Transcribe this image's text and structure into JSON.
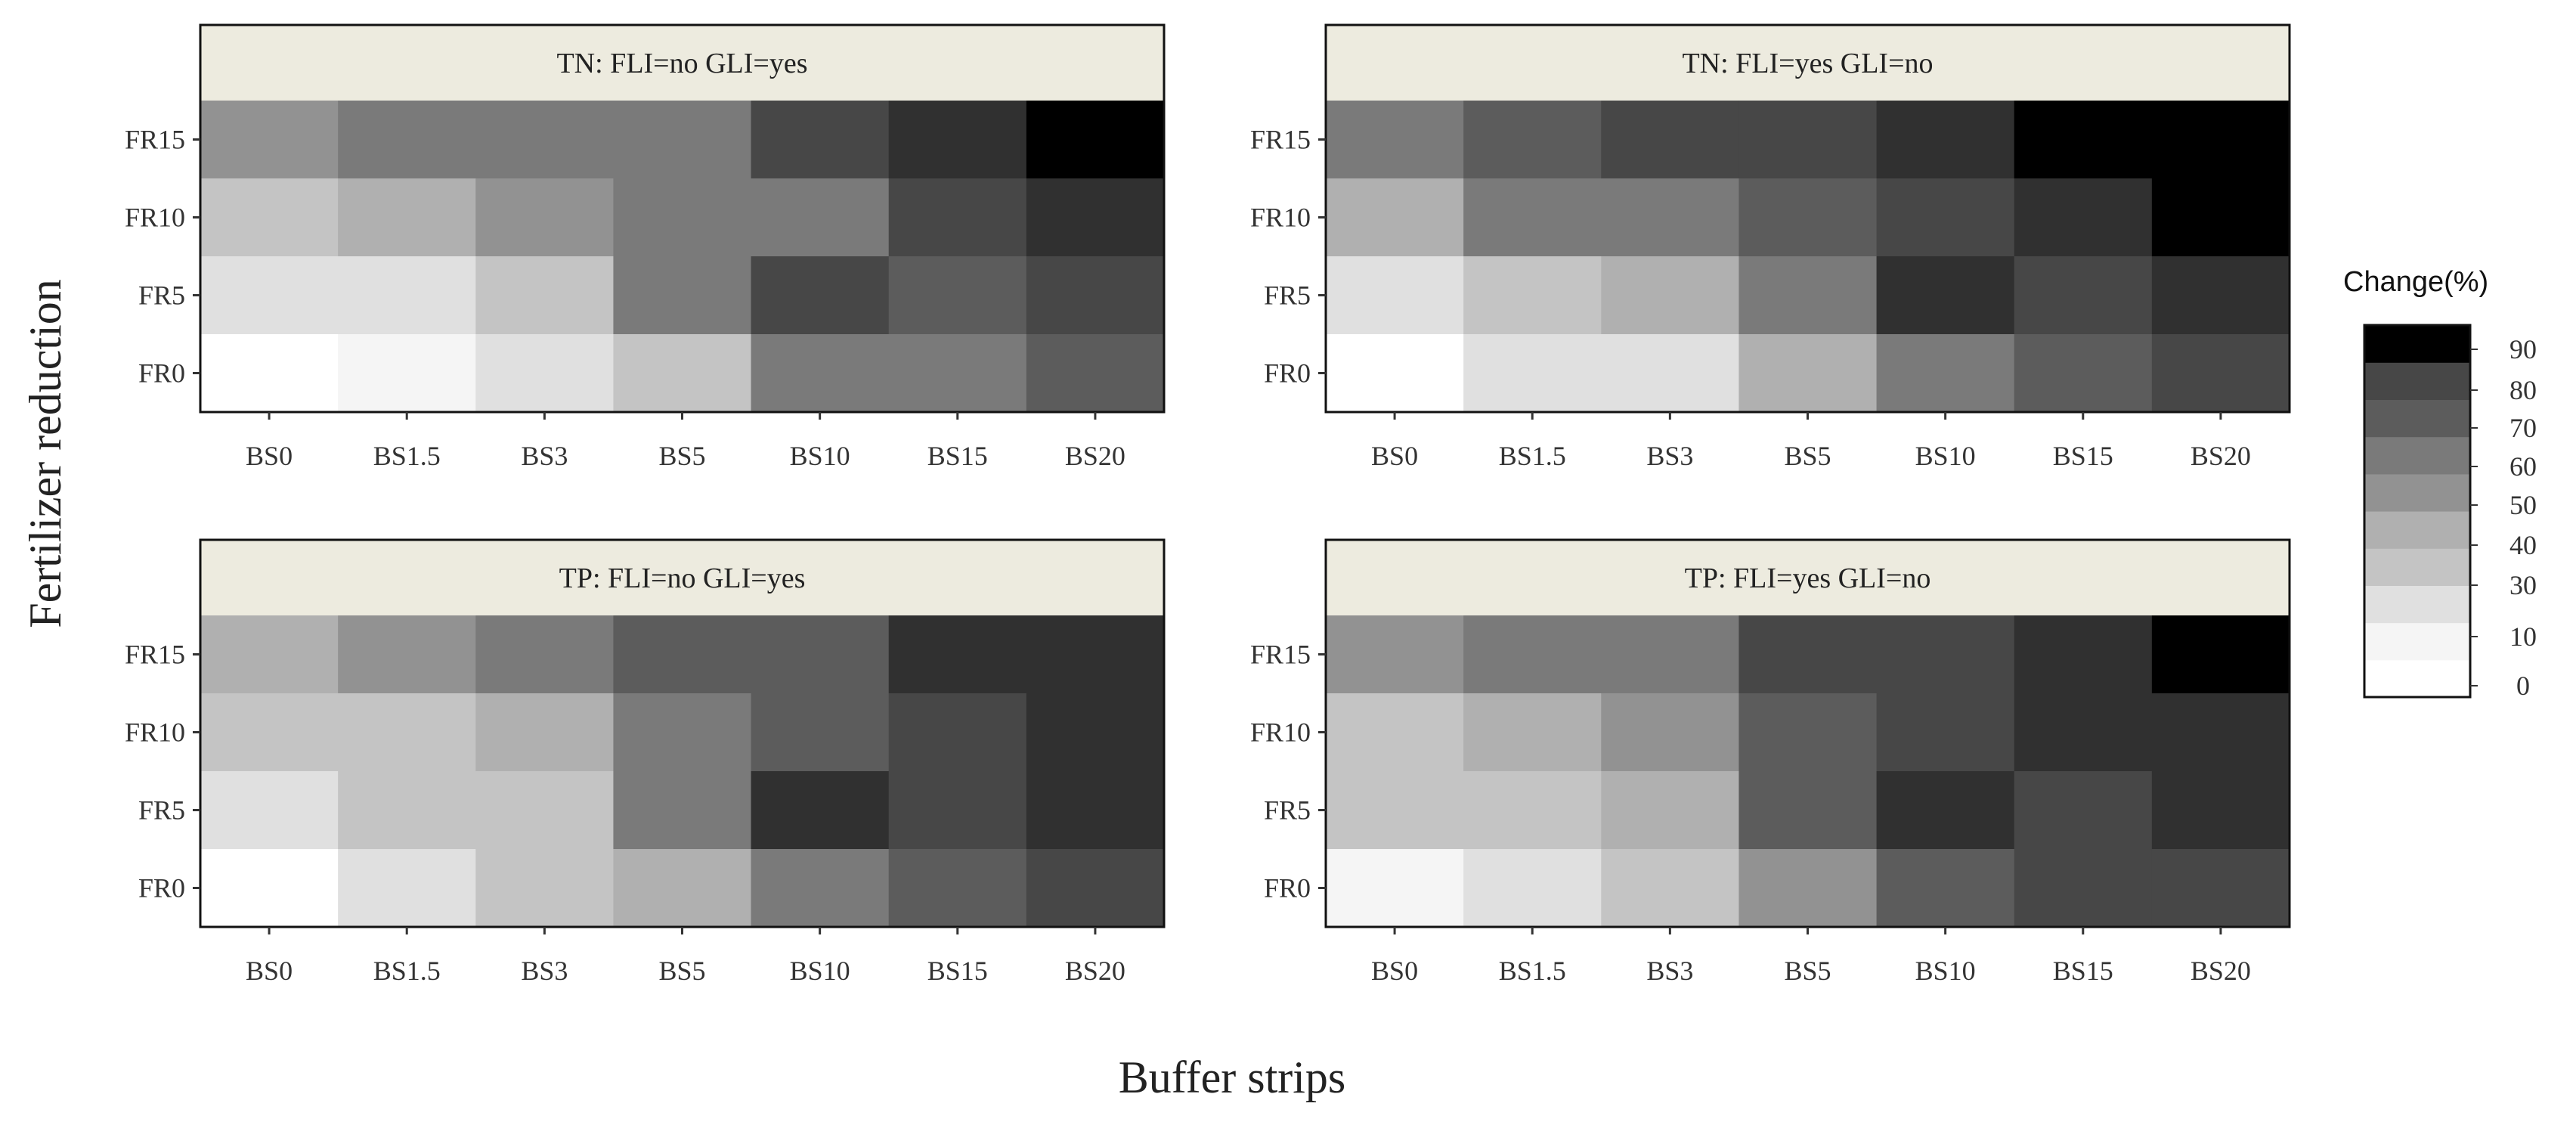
{
  "chart_data": {
    "type": "heatmap",
    "xlabel": "Buffer strips",
    "ylabel": "Fertilizer reduction",
    "x_categories": [
      "BS0",
      "BS1.5",
      "BS3",
      "BS5",
      "BS10",
      "BS15",
      "BS20"
    ],
    "y_categories": [
      "FR0",
      "FR5",
      "FR10",
      "FR15"
    ],
    "legend": {
      "title": "Change(%)",
      "ticks": [
        "90",
        "80",
        "70",
        "60",
        "50",
        "40",
        "30",
        "10",
        "0"
      ],
      "bins": [
        {
          "lo": 0,
          "hi": 10,
          "color": "#ffffff"
        },
        {
          "lo": 10,
          "hi": 20,
          "color": "#f5f5f5"
        },
        {
          "lo": 20,
          "hi": 30,
          "color": "#e0e0e0"
        },
        {
          "lo": 30,
          "hi": 40,
          "color": "#c4c4c4"
        },
        {
          "lo": 40,
          "hi": 50,
          "color": "#b0b0b0"
        },
        {
          "lo": 50,
          "hi": 60,
          "color": "#929292"
        },
        {
          "lo": 60,
          "hi": 70,
          "color": "#7a7a7a"
        },
        {
          "lo": 70,
          "hi": 80,
          "color": "#5c5c5c"
        },
        {
          "lo": 80,
          "hi": 90,
          "color": "#474747"
        },
        {
          "lo": 90,
          "hi": 95,
          "color": "#303030"
        },
        {
          "lo": 95,
          "hi": 100,
          "color": "#000000"
        }
      ]
    },
    "panels": [
      {
        "title": "TN:  FLI=no  GLI=yes",
        "values": {
          "FR15": [
            55,
            65,
            65,
            65,
            85,
            92,
            98
          ],
          "FR10": [
            35,
            45,
            55,
            65,
            65,
            85,
            92
          ],
          "FR5": [
            25,
            25,
            35,
            65,
            85,
            75,
            85
          ],
          "FR0": [
            5,
            15,
            25,
            35,
            65,
            65,
            75
          ]
        }
      },
      {
        "title": "TN:  FLI=yes  GLI=no",
        "values": {
          "FR15": [
            65,
            75,
            85,
            85,
            92,
            98,
            98
          ],
          "FR10": [
            45,
            65,
            65,
            75,
            85,
            92,
            98
          ],
          "FR5": [
            25,
            35,
            45,
            65,
            92,
            85,
            92
          ],
          "FR0": [
            5,
            25,
            25,
            45,
            65,
            75,
            85
          ]
        }
      },
      {
        "title": "TP:  FLI=no  GLI=yes",
        "values": {
          "FR15": [
            45,
            55,
            65,
            75,
            75,
            92,
            92
          ],
          "FR10": [
            35,
            35,
            45,
            65,
            75,
            85,
            92
          ],
          "FR5": [
            25,
            35,
            35,
            65,
            92,
            85,
            92
          ],
          "FR0": [
            5,
            25,
            35,
            45,
            65,
            75,
            85
          ]
        }
      },
      {
        "title": "TP:  FLI=yes  GLI=no",
        "values": {
          "FR15": [
            55,
            65,
            65,
            85,
            85,
            92,
            98
          ],
          "FR10": [
            35,
            45,
            55,
            75,
            85,
            92,
            92
          ],
          "FR5": [
            35,
            35,
            45,
            75,
            92,
            85,
            92
          ],
          "FR0": [
            15,
            25,
            35,
            55,
            75,
            85,
            85
          ]
        }
      }
    ]
  }
}
